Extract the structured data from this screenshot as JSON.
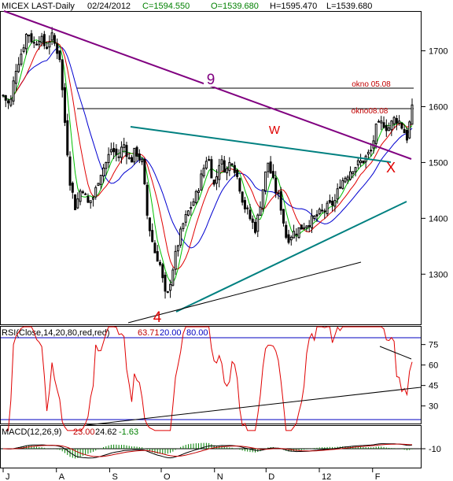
{
  "header": {
    "symbol": "MICEX LAST-Daily",
    "date": "02/24/2012",
    "close": "C=1594.550",
    "open": "O=1539.680",
    "high": "H=1595.470",
    "low": "L=1539.680"
  },
  "annotations": {
    "wave9": "9",
    "wave4": "4",
    "w_mark": "W",
    "x_mark": "X",
    "okno1": "okno 05.08",
    "okno2": "okno08.08"
  },
  "rsi": {
    "label": "RSI(Close,14,20,80,red,red)",
    "value": "63.71",
    "low": "20.00",
    "high": "80.00",
    "ticks": [
      75,
      60,
      45,
      30
    ]
  },
  "macd": {
    "label": "MACD(12,26,9)",
    "v1": "23.00",
    "v2": "24.62",
    "v3": "-1.63",
    "ticks": [
      -10
    ]
  },
  "colors": {
    "candle": "#000000",
    "ma_fast": "#00c000",
    "ma_mid": "#e00000",
    "ma_slow": "#0000d0",
    "trend_purple": "#800080",
    "trend_teal": "#008080",
    "rsi_line": "#e00000",
    "rsi_band": "#0000c0",
    "annot_red": "#e00000"
  },
  "chart_data": {
    "type": "candlestick",
    "title": "MICEX LAST-Daily",
    "ylim": [
      1220,
      1760
    ],
    "y_ticks": [
      1700,
      1600,
      1500,
      1400,
      1300
    ],
    "x_ticks": [
      "J",
      "A",
      "S",
      "O",
      "N",
      "D",
      "12",
      "F"
    ],
    "path_points": [
      {
        "date": "2011-07-01",
        "close": 1620
      },
      {
        "date": "2011-07-05",
        "close": 1600
      },
      {
        "date": "2011-07-08",
        "close": 1665
      },
      {
        "date": "2011-07-12",
        "close": 1700
      },
      {
        "date": "2011-07-15",
        "close": 1735
      },
      {
        "date": "2011-07-19",
        "close": 1712
      },
      {
        "date": "2011-07-22",
        "close": 1725
      },
      {
        "date": "2011-07-26",
        "close": 1705
      },
      {
        "date": "2011-07-29",
        "close": 1728
      },
      {
        "date": "2011-08-03",
        "close": 1688
      },
      {
        "date": "2011-08-05",
        "close": 1605
      },
      {
        "date": "2011-08-09",
        "close": 1465
      },
      {
        "date": "2011-08-12",
        "close": 1420
      },
      {
        "date": "2011-08-16",
        "close": 1460
      },
      {
        "date": "2011-08-19",
        "close": 1425
      },
      {
        "date": "2011-08-23",
        "close": 1440
      },
      {
        "date": "2011-08-26",
        "close": 1478
      },
      {
        "date": "2011-08-30",
        "close": 1500
      },
      {
        "date": "2011-09-02",
        "close": 1525
      },
      {
        "date": "2011-09-06",
        "close": 1508
      },
      {
        "date": "2011-09-09",
        "close": 1535
      },
      {
        "date": "2011-09-13",
        "close": 1500
      },
      {
        "date": "2011-09-16",
        "close": 1522
      },
      {
        "date": "2011-09-20",
        "close": 1498
      },
      {
        "date": "2011-09-23",
        "close": 1400
      },
      {
        "date": "2011-09-27",
        "close": 1342
      },
      {
        "date": "2011-09-30",
        "close": 1322
      },
      {
        "date": "2011-10-04",
        "close": 1250
      },
      {
        "date": "2011-10-07",
        "close": 1300
      },
      {
        "date": "2011-10-11",
        "close": 1358
      },
      {
        "date": "2011-10-14",
        "close": 1392
      },
      {
        "date": "2011-10-18",
        "close": 1420
      },
      {
        "date": "2011-10-21",
        "close": 1438
      },
      {
        "date": "2011-10-25",
        "close": 1482
      },
      {
        "date": "2011-10-28",
        "close": 1515
      },
      {
        "date": "2011-11-01",
        "close": 1455
      },
      {
        "date": "2011-11-04",
        "close": 1505
      },
      {
        "date": "2011-11-08",
        "close": 1485
      },
      {
        "date": "2011-11-11",
        "close": 1508
      },
      {
        "date": "2011-11-15",
        "close": 1466
      },
      {
        "date": "2011-11-18",
        "close": 1425
      },
      {
        "date": "2011-11-22",
        "close": 1398
      },
      {
        "date": "2011-11-25",
        "close": 1380
      },
      {
        "date": "2011-11-29",
        "close": 1450
      },
      {
        "date": "2011-12-02",
        "close": 1502
      },
      {
        "date": "2011-12-06",
        "close": 1455
      },
      {
        "date": "2011-12-09",
        "close": 1432
      },
      {
        "date": "2011-12-13",
        "close": 1362
      },
      {
        "date": "2011-12-16",
        "close": 1372
      },
      {
        "date": "2011-12-20",
        "close": 1380
      },
      {
        "date": "2011-12-23",
        "close": 1388
      },
      {
        "date": "2011-12-27",
        "close": 1395
      },
      {
        "date": "2012-01-10",
        "close": 1430
      },
      {
        "date": "2012-01-13",
        "close": 1462
      },
      {
        "date": "2012-01-17",
        "close": 1478
      },
      {
        "date": "2012-01-20",
        "close": 1490
      },
      {
        "date": "2012-01-24",
        "close": 1498
      },
      {
        "date": "2012-01-27",
        "close": 1505
      },
      {
        "date": "2012-01-31",
        "close": 1520
      },
      {
        "date": "2012-02-03",
        "close": 1560
      },
      {
        "date": "2012-02-07",
        "close": 1572
      },
      {
        "date": "2012-02-10",
        "close": 1560
      },
      {
        "date": "2012-02-14",
        "close": 1580
      },
      {
        "date": "2012-02-17",
        "close": 1572
      },
      {
        "date": "2012-02-21",
        "close": 1545
      },
      {
        "date": "2012-02-24",
        "close": 1594.55
      }
    ]
  }
}
